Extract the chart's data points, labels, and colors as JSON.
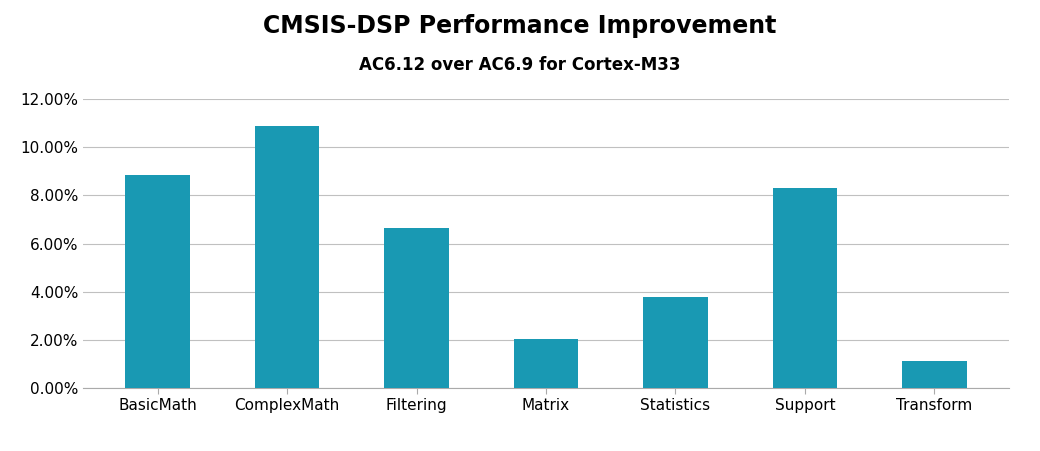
{
  "title": "CMSIS-DSP Performance Improvement",
  "subtitle": "AC6.12 over AC6.9 for Cortex-M33",
  "categories": [
    "BasicMath",
    "ComplexMath",
    "Filtering",
    "Matrix",
    "Statistics",
    "Support",
    "Transform"
  ],
  "values": [
    0.0885,
    0.109,
    0.0663,
    0.0205,
    0.0378,
    0.083,
    0.011
  ],
  "bar_color": "#1999b3",
  "ylim": [
    0,
    0.12
  ],
  "yticks": [
    0.0,
    0.02,
    0.04,
    0.06,
    0.08,
    0.1,
    0.12
  ],
  "background_color": "#ffffff",
  "title_fontsize": 17,
  "subtitle_fontsize": 12,
  "tick_fontsize": 11,
  "grid_color": "#c0c0c0"
}
